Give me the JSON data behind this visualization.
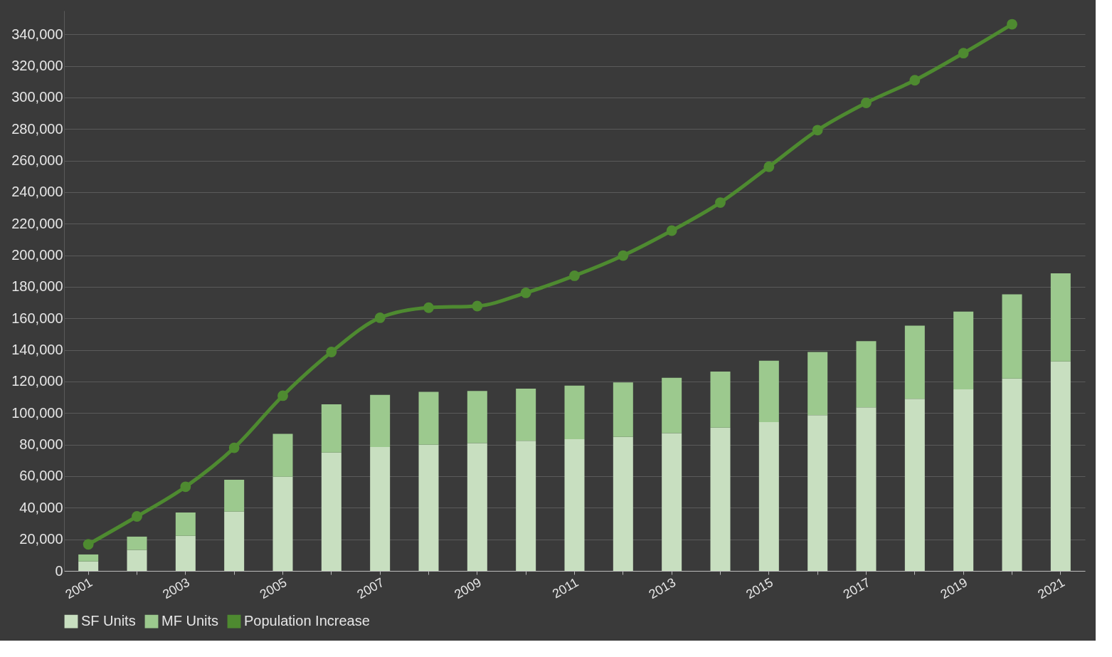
{
  "chart_data": {
    "type": "bar",
    "stacked": true,
    "categories": [
      "2001",
      null,
      "2003",
      null,
      "2005",
      null,
      "2007",
      null,
      "2009",
      null,
      "2011",
      null,
      "2013",
      null,
      "2015",
      null,
      "2017",
      null,
      "2019",
      null,
      "2021"
    ],
    "series": [
      {
        "name": "SF Units",
        "color": "#c8dfc0",
        "values": [
          6000,
          13300,
          22200,
          37500,
          59700,
          75000,
          78500,
          80000,
          81000,
          82400,
          83400,
          84900,
          87300,
          90800,
          94300,
          98700,
          103600,
          109100,
          115000,
          121900,
          132700
        ]
      },
      {
        "name": "MF Units",
        "color": "#9cc98e",
        "values": [
          4400,
          8400,
          14800,
          20200,
          27100,
          30600,
          33000,
          33500,
          33000,
          33100,
          34000,
          34500,
          35100,
          35500,
          38900,
          40000,
          42000,
          46300,
          49300,
          53300,
          55800
        ]
      },
      {
        "name": "Population Increase",
        "type": "line",
        "color": "#4e8a30",
        "marker": "circle",
        "values": [
          16800,
          34500,
          53300,
          78000,
          111000,
          138700,
          160400,
          166800,
          167800,
          176200,
          187000,
          199800,
          215600,
          233400,
          256100,
          279300,
          296600,
          310900,
          328100,
          346400,
          null
        ]
      }
    ],
    "ylim": [
      0,
      355000
    ],
    "yticks": [
      0,
      {
        "value": 20000,
        "label": "20,000"
      },
      {
        "value": 40000,
        "label": "40,000"
      },
      {
        "value": 60000,
        "label": "60,000"
      },
      {
        "value": 80000,
        "label": "80,000"
      },
      {
        "value": 100000,
        "label": "100,000"
      },
      {
        "value": 120000,
        "label": "120,000"
      },
      {
        "value": 140000,
        "label": "140,000"
      },
      {
        "value": 160000,
        "label": "160,000"
      },
      {
        "value": 180000,
        "label": "180,000"
      },
      {
        "value": 200000,
        "label": "200,000"
      },
      {
        "value": 220000,
        "label": "220,000"
      },
      {
        "value": 240000,
        "label": "240,000"
      },
      {
        "value": 260000,
        "label": "260,000"
      },
      {
        "value": 280000,
        "label": "280,000"
      },
      {
        "value": 300000,
        "label": "300,000"
      },
      {
        "value": 320000,
        "label": "320,000"
      },
      {
        "value": 340000,
        "label": "340,000"
      }
    ],
    "grid": "y",
    "legend": "bottom"
  }
}
